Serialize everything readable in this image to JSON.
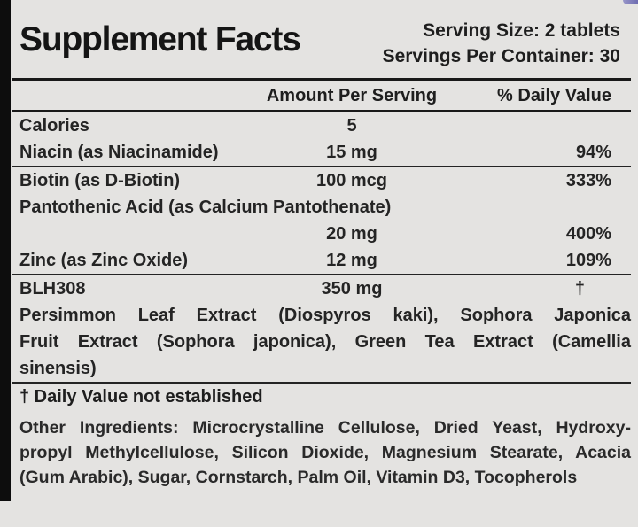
{
  "supplement_label": {
    "title": "Supplement Facts",
    "serving": {
      "size": "Serving Size: 2 tablets",
      "per_container": "Servings Per Container: 30"
    },
    "table": {
      "headers": {
        "amount": "Amount Per Serving",
        "daily_value": "% Daily Value"
      },
      "rows": [
        {
          "name": "Calories",
          "amount": "5",
          "dv": ""
        },
        {
          "name": "Niacin (as Niacinamide)",
          "amount": "15 mg",
          "dv": "94%"
        },
        {
          "name": "Biotin (as D-Biotin)",
          "amount": "100 mcg",
          "dv": "333%"
        },
        {
          "name": "Pantothenic Acid (as Calcium Pantothenate)",
          "amount": "",
          "dv": ""
        },
        {
          "name": "",
          "amount": "20 mg",
          "dv": "400%"
        },
        {
          "name": "Zinc (as Zinc Oxide)",
          "amount": "12 mg",
          "dv": "109%"
        },
        {
          "name": "BLH308",
          "amount": "350 mg",
          "dv": "†"
        }
      ]
    },
    "botanical_lines": [
      "Persimmon Leaf Extract (Diospyros kaki), Sophora Japonica",
      "Fruit Extract (Sophora japonica), Green Tea Extract (Camellia",
      "sinensis)"
    ],
    "footnote": "† Daily Value not established",
    "other_ingredients_lines": [
      "Other Ingredients: Microcrystalline Cellulose, Dried Yeast, Hydroxy-",
      "propyl Methylcellulose, Silicon Dioxide, Magnesium Stearate, Acacia",
      "(Gum Arabic), Sugar, Cornstarch, Palm Oil, Vitamin D3, Tocopherols"
    ],
    "colors": {
      "background": "#e4e3e1",
      "text": "#242424",
      "rule": "#191919",
      "side_bar": "#0d0d0d",
      "corner_mark": "#5a58a8"
    }
  }
}
